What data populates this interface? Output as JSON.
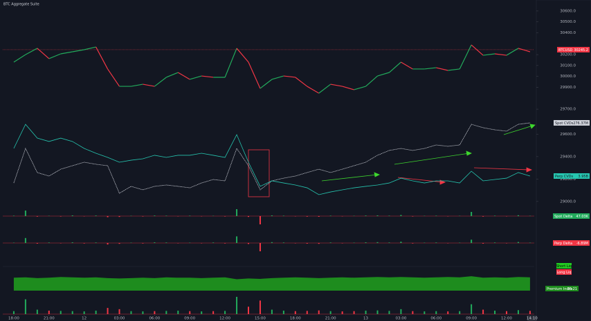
{
  "header": {
    "title": "BTC Aggregate Suite"
  },
  "liquidations": {
    "short": "Short Liq",
    "long": "Long Liq"
  },
  "chart_data": [
    {
      "type": "line",
      "name": "BTCUSD",
      "last": 30245.2,
      "colors": {
        "up": "#22ab5c",
        "down": "#f23645"
      },
      "x": [
        0,
        1,
        2,
        3,
        4,
        5,
        6,
        7,
        8,
        9,
        10,
        11,
        12,
        13,
        14,
        15,
        16,
        17,
        18,
        19,
        20,
        21,
        22,
        23,
        24,
        25,
        26,
        27,
        28,
        29,
        30,
        31,
        32,
        33,
        34,
        35,
        36,
        37,
        38,
        39,
        40,
        41,
        42,
        43,
        44
      ],
      "xlim": [
        -0.94,
        44.36
      ],
      "xticks": [
        {
          "value": 0,
          "label": "18:00"
        },
        {
          "value": 3,
          "label": "21:00"
        },
        {
          "value": 6,
          "label": "12"
        },
        {
          "value": 9,
          "label": "03:00"
        },
        {
          "value": 12,
          "label": "06:00"
        },
        {
          "value": 15,
          "label": "09:00"
        },
        {
          "value": 18,
          "label": "12:00"
        },
        {
          "value": 21,
          "label": "15:00"
        },
        {
          "value": 24,
          "label": "18:00"
        },
        {
          "value": 27,
          "label": "21:00"
        },
        {
          "value": 30,
          "label": "13"
        },
        {
          "value": 33,
          "label": "03:00"
        },
        {
          "value": 36,
          "label": "06:00"
        },
        {
          "value": 39,
          "label": "09:00"
        },
        {
          "value": 42,
          "label": "12:00"
        }
      ],
      "current_time": {
        "value": 44.17,
        "label": "14:10"
      },
      "ylim": [
        29650,
        30650
      ],
      "yticks": [
        {
          "value": 30600,
          "label": "30600.0"
        },
        {
          "value": 30500,
          "label": "30500.0"
        },
        {
          "value": 30400,
          "label": "30400.0"
        },
        {
          "value": 30200,
          "label": "30200.0"
        },
        {
          "value": 30100,
          "label": "30100.0"
        },
        {
          "value": 30000,
          "label": "30000.0"
        },
        {
          "value": 29900,
          "label": "29900.0"
        },
        {
          "value": 29700,
          "label": "29700.0"
        }
      ],
      "values": [
        30131,
        30200,
        30258,
        30163,
        30207,
        30226,
        30245,
        30270,
        30068,
        29909,
        29909,
        29928,
        29909,
        29992,
        30036,
        29973,
        30004,
        29992,
        29992,
        30258,
        30131,
        29890,
        29973,
        30004,
        29992,
        29909,
        29846,
        29928,
        29909,
        29878,
        29909,
        30004,
        30036,
        30131,
        30068,
        30068,
        30080,
        30055,
        30068,
        30289,
        30194,
        30207,
        30194,
        30258,
        30226
      ]
    },
    {
      "type": "line",
      "ylim": [
        28950,
        29750
      ],
      "yticks": [
        {
          "value": 29600,
          "label": "29600.0"
        },
        {
          "value": 29400,
          "label": "29400.0"
        },
        {
          "value": 29200,
          "label": "29200.0"
        },
        {
          "value": 29000,
          "label": "29000.0"
        }
      ],
      "series": [
        {
          "name": "Spot CVDs",
          "last_label": "276.37M",
          "color": "#d1d4dc",
          "dash": true,
          "values": [
            29165,
            29473,
            29258,
            29227,
            29288,
            29319,
            29350,
            29332,
            29319,
            29073,
            29135,
            29104,
            29135,
            29147,
            29135,
            29122,
            29165,
            29196,
            29184,
            29473,
            29319,
            29104,
            29184,
            29208,
            29227,
            29258,
            29288,
            29258,
            29288,
            29319,
            29350,
            29412,
            29455,
            29473,
            29455,
            29473,
            29504,
            29492,
            29504,
            29688,
            29658,
            29639,
            29627,
            29688,
            29701
          ]
        },
        {
          "name": "Perp CVDs",
          "last_label": "3.95B",
          "color": "#26c6b0",
          "dash": false,
          "values": [
            29473,
            29688,
            29565,
            29535,
            29565,
            29535,
            29473,
            29430,
            29393,
            29350,
            29368,
            29381,
            29412,
            29393,
            29412,
            29412,
            29430,
            29412,
            29393,
            29596,
            29350,
            29135,
            29184,
            29165,
            29147,
            29122,
            29061,
            29085,
            29104,
            29122,
            29135,
            29147,
            29165,
            29208,
            29184,
            29165,
            29184,
            29184,
            29165,
            29270,
            29184,
            29196,
            29208,
            29258,
            29227
          ]
        }
      ]
    },
    {
      "type": "bar",
      "name": "Spot Delta",
      "last_label": "47.03K",
      "ylim": [
        -60,
        60
      ],
      "colors": {
        "up": "#22ab5c",
        "down": "#f23645"
      },
      "values": [
        3,
        40,
        -4,
        2,
        -3,
        5,
        -2,
        4,
        -8,
        -6,
        2,
        -3,
        4,
        3,
        -2,
        3,
        -2,
        2,
        -3,
        50,
        -6,
        -60,
        5,
        3,
        -2,
        -4,
        -5,
        3,
        -2,
        2,
        4,
        5,
        3,
        8,
        -3,
        2,
        3,
        -2,
        2,
        30,
        -4,
        3,
        -2,
        6,
        2
      ]
    },
    {
      "type": "bar",
      "name": "Perp Delta",
      "last_label": "-6.89M",
      "ylim": [
        -5,
        5
      ],
      "colors": {
        "up": "#22ab5c",
        "down": "#f23645"
      },
      "values": [
        0.2,
        3,
        -0.4,
        0.3,
        -0.2,
        0.4,
        -0.3,
        0.3,
        -0.9,
        -0.5,
        0.2,
        -0.3,
        0.4,
        0.3,
        -0.2,
        0.2,
        -0.2,
        0.3,
        -0.3,
        4,
        -0.6,
        -5,
        0.5,
        0.3,
        -0.2,
        -0.4,
        -0.5,
        0.3,
        -0.2,
        0.2,
        0.4,
        0.5,
        0.3,
        0.8,
        -0.3,
        0.2,
        0.3,
        -0.2,
        0.2,
        2,
        -0.4,
        0.3,
        -0.2,
        0.6,
        0.2
      ]
    },
    {
      "type": "area",
      "name": "Premium Index",
      "last_label": "35.21",
      "ylim": [
        0,
        40
      ],
      "color": "#1e8c1e",
      "values": [
        34,
        35,
        33,
        34,
        36,
        35,
        34,
        35,
        33,
        32,
        33,
        34,
        33,
        35,
        34,
        34,
        33,
        34,
        35,
        30,
        32,
        31,
        33,
        34,
        35,
        34,
        33,
        34,
        35,
        34,
        35,
        36,
        35,
        36,
        35,
        34,
        35,
        36,
        35,
        38,
        34,
        35,
        34,
        36,
        35
      ]
    },
    {
      "type": "bar",
      "ylim": [
        0,
        70
      ],
      "colors": {
        "up": "#22ab5c",
        "down": "#f23645"
      },
      "values": [
        12,
        60,
        18,
        14,
        13,
        12,
        11,
        14,
        25,
        20,
        12,
        11,
        12,
        13,
        14,
        12,
        11,
        12,
        13,
        70,
        30,
        55,
        18,
        14,
        12,
        13,
        15,
        12,
        11,
        12,
        14,
        15,
        13,
        20,
        12,
        11,
        12,
        11,
        12,
        40,
        18,
        14,
        12,
        16,
        13
      ]
    }
  ]
}
